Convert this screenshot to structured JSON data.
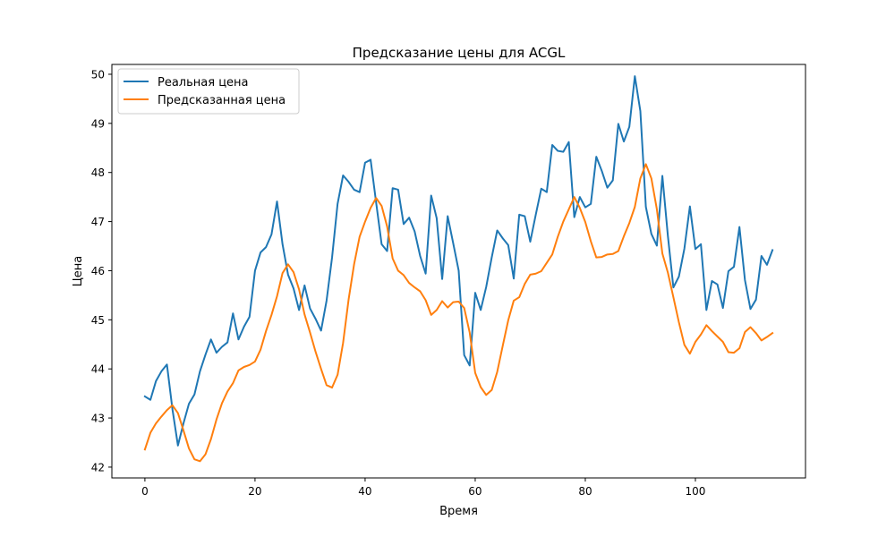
{
  "chart_data": {
    "type": "line",
    "title": "Предсказание цены для ACGL",
    "xlabel": "Время",
    "ylabel": "Цена",
    "xlim": [
      -6,
      120
    ],
    "ylim": [
      41.78,
      50.2
    ],
    "xticks": [
      0,
      20,
      40,
      60,
      80,
      100
    ],
    "yticks": [
      42,
      43,
      44,
      45,
      46,
      47,
      48,
      49,
      50
    ],
    "grid": false,
    "legend_position": "top-left",
    "series": [
      {
        "name": "Реальная цена",
        "color": "#1f77b4",
        "values": [
          43.44,
          43.37,
          43.75,
          43.95,
          44.09,
          43.18,
          42.44,
          42.89,
          43.29,
          43.48,
          43.95,
          44.29,
          44.6,
          44.33,
          44.45,
          44.54,
          45.13,
          44.6,
          44.86,
          45.06,
          46.0,
          46.37,
          46.48,
          46.74,
          47.41,
          46.54,
          45.92,
          45.64,
          45.2,
          45.7,
          45.23,
          45.02,
          44.78,
          45.39,
          46.27,
          47.36,
          47.94,
          47.81,
          47.65,
          47.6,
          48.2,
          48.26,
          47.39,
          46.54,
          46.4,
          47.68,
          47.65,
          46.95,
          47.08,
          46.8,
          46.3,
          45.94,
          47.53,
          47.07,
          45.83,
          47.11,
          46.56,
          46.0,
          44.28,
          44.07,
          45.55,
          45.2,
          45.67,
          46.27,
          46.82,
          46.66,
          46.52,
          45.84,
          47.14,
          47.11,
          46.59,
          47.14,
          47.67,
          47.6,
          48.56,
          48.44,
          48.42,
          48.62,
          47.09,
          47.5,
          47.29,
          47.36,
          48.32,
          48.03,
          47.69,
          47.84,
          48.99,
          48.63,
          48.93,
          49.96,
          49.25,
          47.3,
          46.75,
          46.51,
          47.93,
          46.71,
          45.66,
          45.88,
          46.45,
          47.31,
          46.44,
          46.54,
          45.2,
          45.79,
          45.72,
          45.24,
          45.99,
          46.08,
          46.89,
          45.81,
          45.22,
          45.41,
          46.3,
          46.12,
          46.42
        ]
      },
      {
        "name": "Предсказанная цена",
        "color": "#ff7f0e",
        "values": [
          42.36,
          42.7,
          42.89,
          43.03,
          43.16,
          43.26,
          43.1,
          42.75,
          42.38,
          42.16,
          42.12,
          42.26,
          42.57,
          42.97,
          43.3,
          43.54,
          43.71,
          43.97,
          44.04,
          44.08,
          44.15,
          44.39,
          44.77,
          45.1,
          45.48,
          45.95,
          46.13,
          45.97,
          45.62,
          45.11,
          44.74,
          44.35,
          44.0,
          43.67,
          43.62,
          43.88,
          44.53,
          45.41,
          46.13,
          46.69,
          47.0,
          47.28,
          47.48,
          47.32,
          46.9,
          46.25,
          46.0,
          45.91,
          45.75,
          45.66,
          45.58,
          45.4,
          45.1,
          45.2,
          45.38,
          45.25,
          45.36,
          45.37,
          45.24,
          44.74,
          43.92,
          43.63,
          43.47,
          43.57,
          43.94,
          44.47,
          44.99,
          45.39,
          45.46,
          45.73,
          45.92,
          45.94,
          45.99,
          46.16,
          46.33,
          46.69,
          47.0,
          47.25,
          47.5,
          47.28,
          46.99,
          46.6,
          46.27,
          46.28,
          46.33,
          46.34,
          46.4,
          46.7,
          46.97,
          47.3,
          47.88,
          48.17,
          47.88,
          47.25,
          46.35,
          45.96,
          45.46,
          44.95,
          44.49,
          44.31,
          44.55,
          44.7,
          44.89,
          44.77,
          44.66,
          44.55,
          44.34,
          44.33,
          44.42,
          44.75,
          44.85,
          44.73,
          44.58,
          44.65,
          44.73
        ]
      }
    ]
  }
}
